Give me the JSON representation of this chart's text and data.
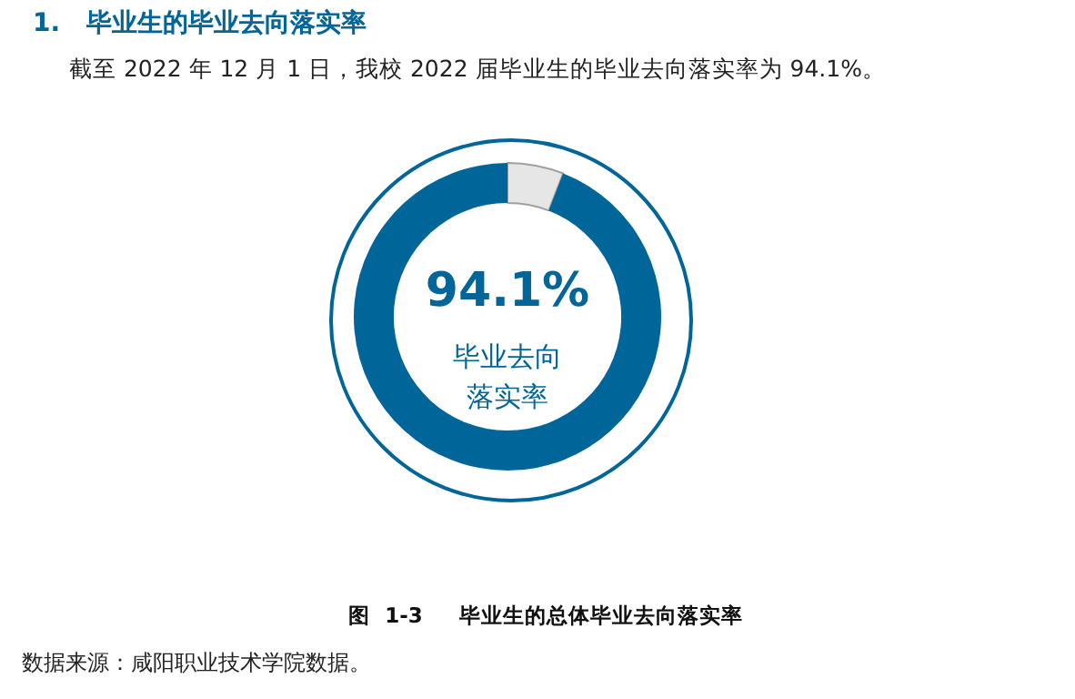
{
  "chart_data": {
    "type": "donut",
    "title": "1.   毕业生的毕业去向落实率",
    "subtitle": "截至 2022 年 12 月 1 日，我校 2022 届毕业生的毕业去向落实率为 94.1%。",
    "categories": [
      null,
      null
    ],
    "values": [
      5.9,
      94.1
    ],
    "colors": [
      "#e6e6e6",
      "#006699"
    ],
    "value_labels": [
      null,
      "94.1%"
    ],
    "annotations": [
      "毕业去向落实率",
      "图  1-3     毕业生的总体毕业去向落实率",
      "数据来源：咸阳职业技术学院数据。"
    ],
    "legend": false
  }
}
